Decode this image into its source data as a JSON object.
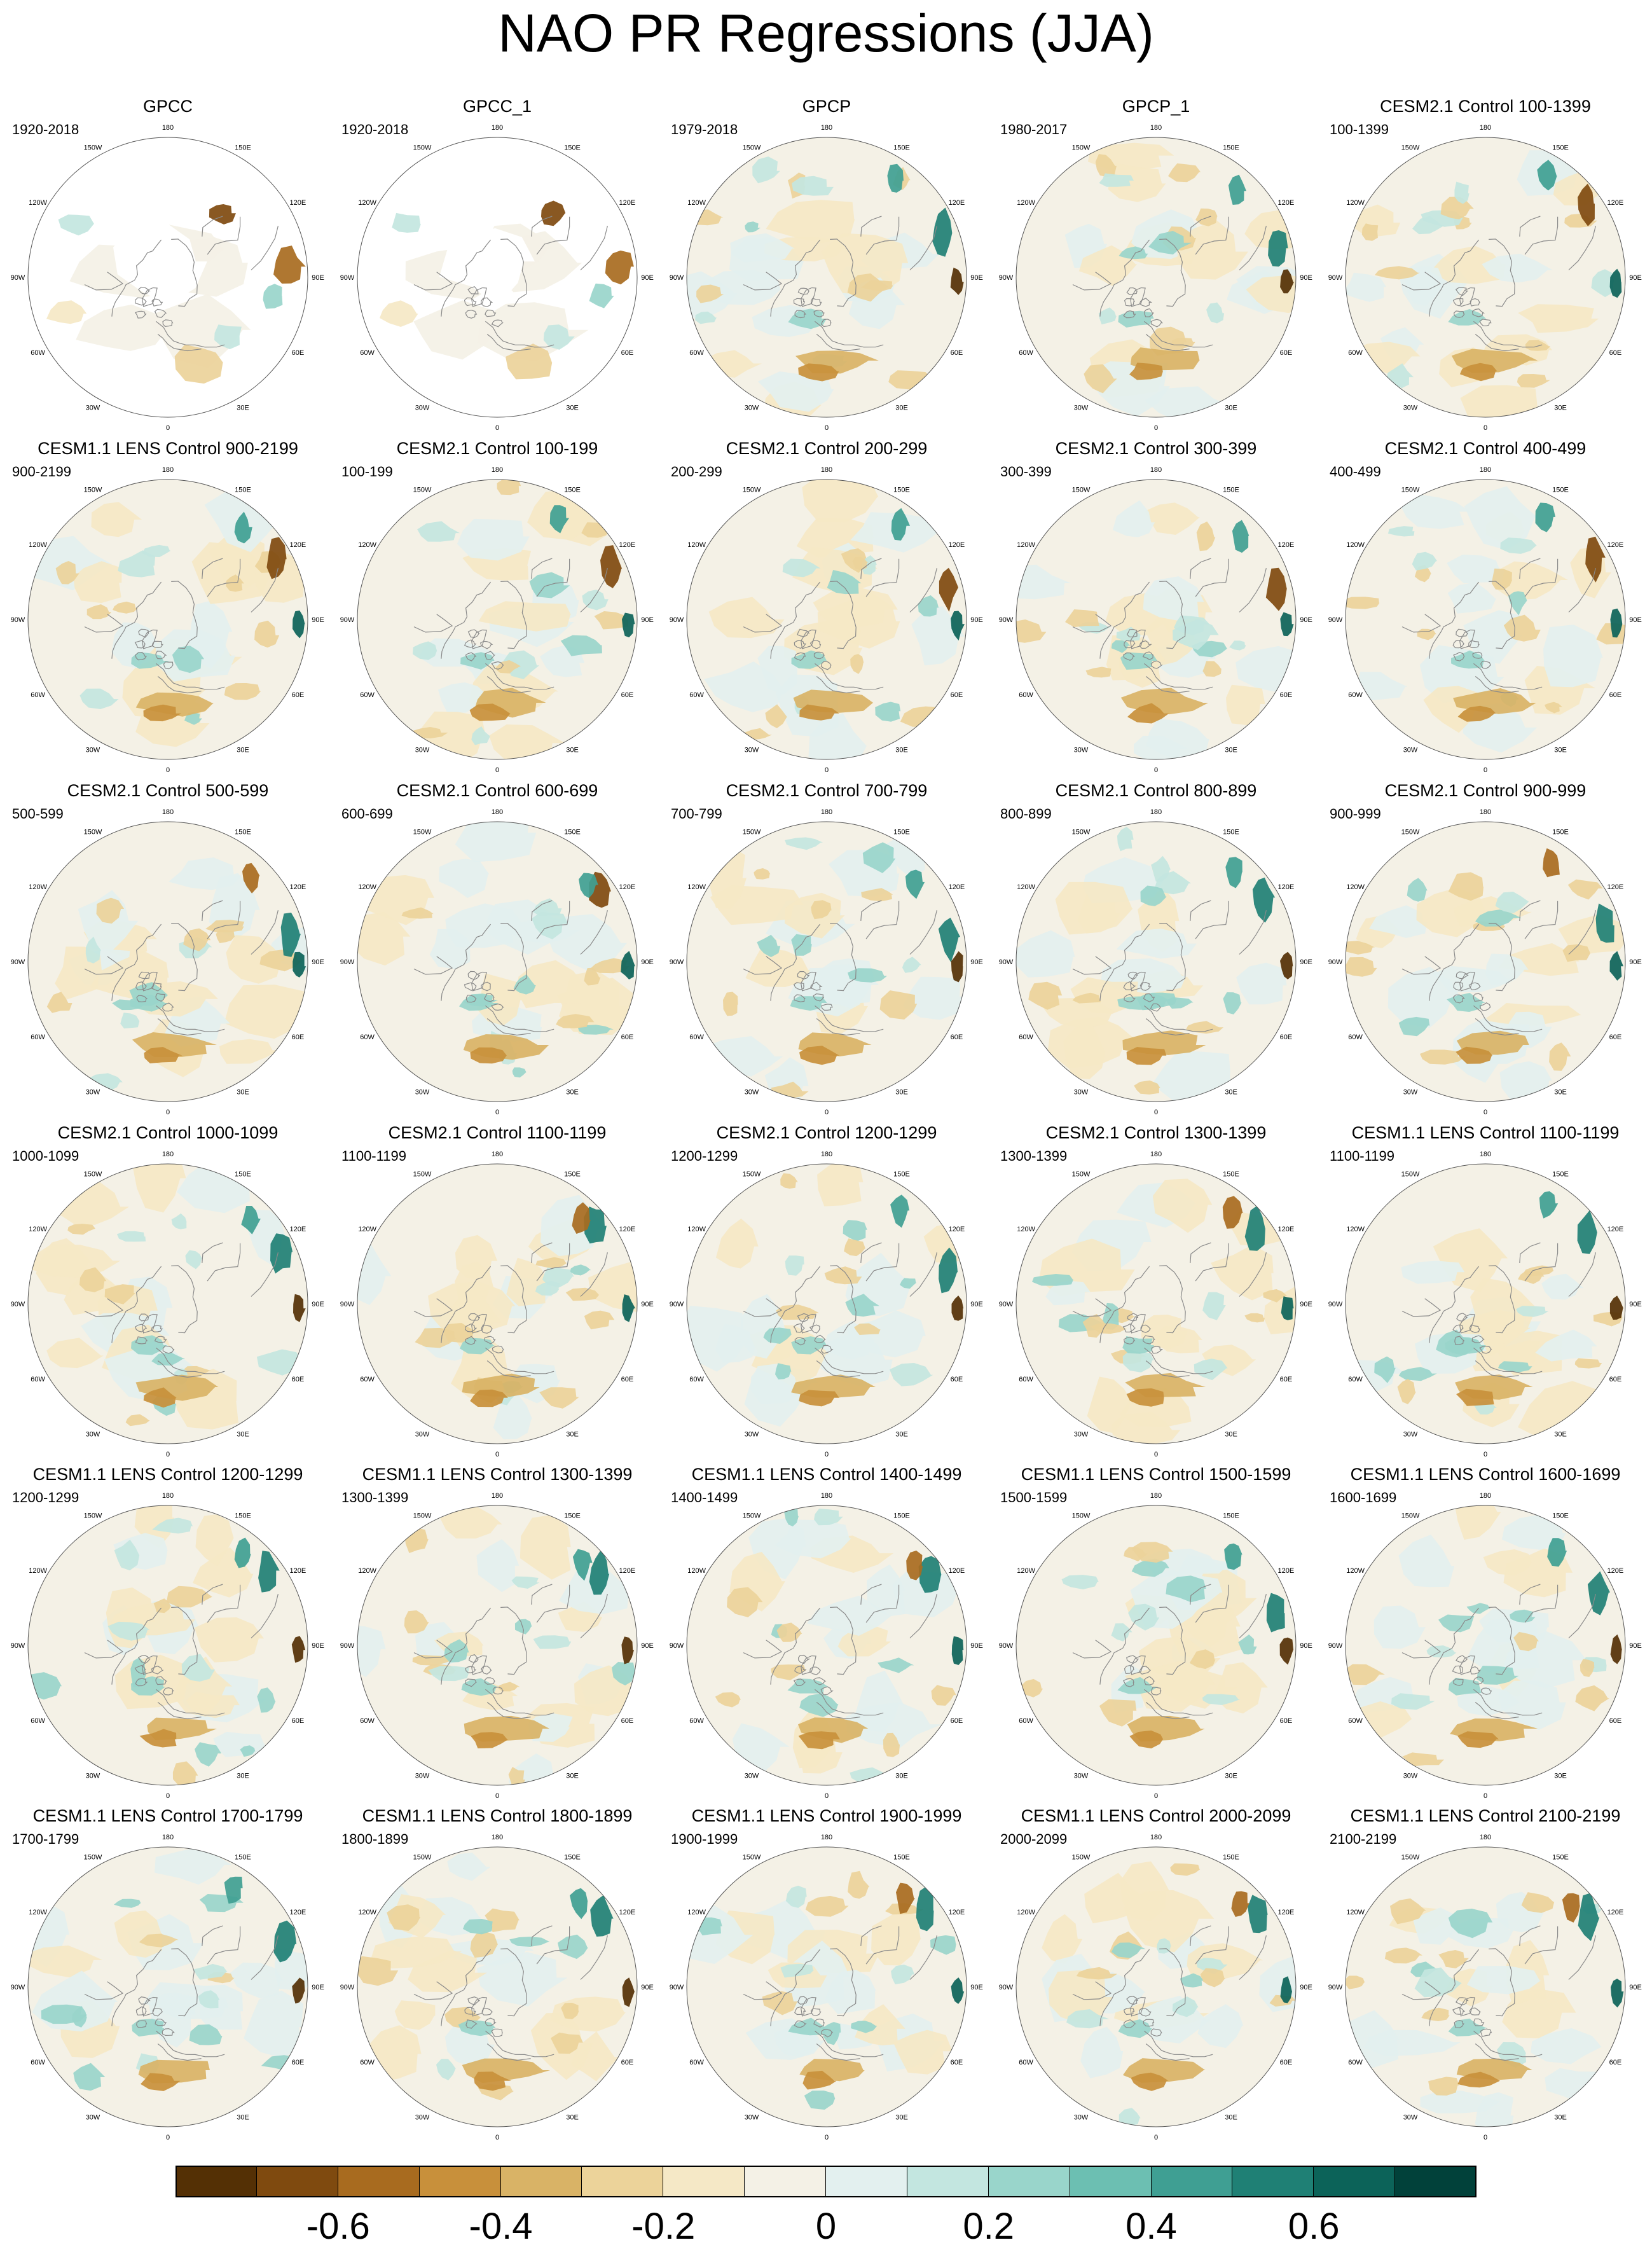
{
  "title": "NAO PR Regressions (JJA)",
  "map": {
    "projection": "north polar stereographic",
    "lon_labels": [
      "180",
      "150E",
      "120E",
      "90E",
      "60E",
      "30E",
      "0",
      "30W",
      "60W",
      "90W",
      "120W",
      "150W"
    ]
  },
  "panels": [
    {
      "title": "GPCC",
      "years": "1920-2018",
      "observed_land_only": true
    },
    {
      "title": "GPCC_1",
      "years": "1920-2018",
      "observed_land_only": true
    },
    {
      "title": "GPCP",
      "years": "1979-2018"
    },
    {
      "title": "GPCP_1",
      "years": "1980-2017"
    },
    {
      "title": "CESM2.1 Control 100-1399",
      "years": "100-1399"
    },
    {
      "title": "CESM1.1 LENS Control 900-2199",
      "years": "900-2199"
    },
    {
      "title": "CESM2.1 Control 100-199",
      "years": "100-199"
    },
    {
      "title": "CESM2.1 Control 200-299",
      "years": "200-299"
    },
    {
      "title": "CESM2.1 Control 300-399",
      "years": "300-399"
    },
    {
      "title": "CESM2.1 Control 400-499",
      "years": "400-499"
    },
    {
      "title": "CESM2.1 Control 500-599",
      "years": "500-599"
    },
    {
      "title": "CESM2.1 Control 600-699",
      "years": "600-699"
    },
    {
      "title": "CESM2.1 Control 700-799",
      "years": "700-799"
    },
    {
      "title": "CESM2.1 Control 800-899",
      "years": "800-899"
    },
    {
      "title": "CESM2.1 Control 900-999",
      "years": "900-999"
    },
    {
      "title": "CESM2.1 Control 1000-1099",
      "years": "1000-1099"
    },
    {
      "title": "CESM2.1 Control 1100-1199",
      "years": "1100-1199"
    },
    {
      "title": "CESM2.1 Control 1200-1299",
      "years": "1200-1299"
    },
    {
      "title": "CESM2.1 Control 1300-1399",
      "years": "1300-1399"
    },
    {
      "title": "CESM1.1 LENS Control 1100-1199",
      "years": "1100-1199"
    },
    {
      "title": "CESM1.1 LENS Control 1200-1299",
      "years": "1200-1299"
    },
    {
      "title": "CESM1.1 LENS Control 1300-1399",
      "years": "1300-1399"
    },
    {
      "title": "CESM1.1 LENS Control 1400-1499",
      "years": "1400-1499"
    },
    {
      "title": "CESM1.1 LENS Control 1500-1599",
      "years": "1500-1599"
    },
    {
      "title": "CESM1.1 LENS Control 1600-1699",
      "years": "1600-1699"
    },
    {
      "title": "CESM1.1 LENS Control 1700-1799",
      "years": "1700-1799"
    },
    {
      "title": "CESM1.1 LENS Control 1800-1899",
      "years": "1800-1899"
    },
    {
      "title": "CESM1.1 LENS Control 1900-1999",
      "years": "1900-1999"
    },
    {
      "title": "CESM1.1 LENS Control 2000-2099",
      "years": "2000-2099"
    },
    {
      "title": "CESM1.1 LENS Control 2100-2199",
      "years": "2100-2199"
    }
  ],
  "colorbar": {
    "colors": [
      "#543005",
      "#7f4a0f",
      "#a86b1f",
      "#c8903b",
      "#d9b366",
      "#ecd39a",
      "#f5e8c6",
      "#f4f1e6",
      "#e3f0ef",
      "#c3e6e0",
      "#99d5cb",
      "#6cbfb2",
      "#3f9f93",
      "#1f8075",
      "#0c6359",
      "#01413a"
    ],
    "tick_labels": [
      "-0.6",
      "-0.4",
      "-0.2",
      "0",
      "0.2",
      "0.4",
      "0.6"
    ],
    "tick_values": [
      -0.6,
      -0.4,
      -0.2,
      0,
      0.2,
      0.4,
      0.6
    ],
    "range": [
      -0.8,
      0.8
    ]
  }
}
